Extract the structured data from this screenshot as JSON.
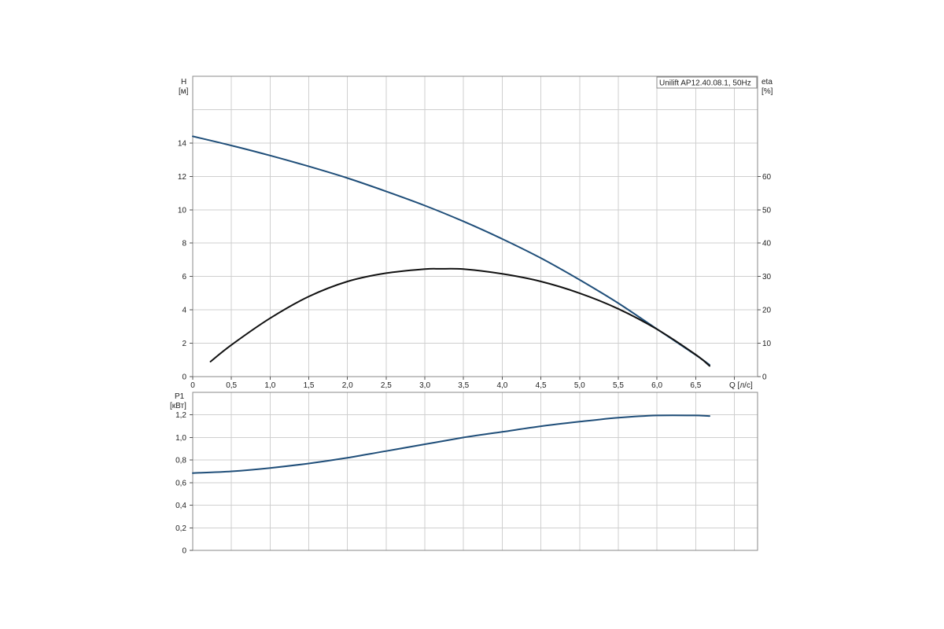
{
  "chart_data": [
    {
      "type": "line",
      "legend_text": "Unilift AP12.40.08.1, 50Hz",
      "legend_placement": "top-right",
      "grid": true,
      "xlabel": "Q [л/с]",
      "ylabel_left": {
        "name": "H",
        "unit": "[м]"
      },
      "ylabel_right": {
        "name": "eta",
        "unit": "[%]"
      },
      "xlim": [
        0,
        7.3
      ],
      "ylim_left": [
        0,
        18
      ],
      "ylim_right": [
        0,
        90
      ],
      "x_ticks": [
        "0",
        "0,5",
        "1,0",
        "1,5",
        "2,0",
        "2,5",
        "3,0",
        "3,5",
        "4,0",
        "4,5",
        "5,0",
        "5,5",
        "6,0",
        "6,5"
      ],
      "x_tick_values": [
        0,
        0.5,
        1.0,
        1.5,
        2.0,
        2.5,
        3.0,
        3.5,
        4.0,
        4.5,
        5.0,
        5.5,
        6.0,
        6.5
      ],
      "y_left_ticks": [
        "0",
        "2",
        "4",
        "6",
        "8",
        "10",
        "12",
        "14"
      ],
      "y_left_tick_values": [
        0,
        2,
        4,
        6,
        8,
        10,
        12,
        14
      ],
      "y_right_ticks": [
        "0",
        "10",
        "20",
        "30",
        "40",
        "50",
        "60"
      ],
      "y_right_tick_values": [
        0,
        10,
        20,
        30,
        40,
        50,
        60
      ],
      "series": [
        {
          "axis": "left",
          "color": "#1f4e79",
          "x": [
            0,
            0.5,
            1.0,
            1.5,
            2.0,
            2.5,
            3.0,
            3.5,
            4.0,
            4.5,
            5.0,
            5.5,
            6.0,
            6.5,
            6.68
          ],
          "y": [
            14.4,
            13.85,
            13.25,
            12.6,
            11.9,
            11.1,
            10.25,
            9.3,
            8.25,
            7.1,
            5.8,
            4.4,
            2.85,
            1.3,
            0.7
          ]
        },
        {
          "axis": "right",
          "color": "#111111",
          "x": [
            0.23,
            0.5,
            1.0,
            1.5,
            2.0,
            2.5,
            3.0,
            3.2,
            3.5,
            4.0,
            4.5,
            5.0,
            5.5,
            6.0,
            6.5,
            6.68
          ],
          "y": [
            4.5,
            9.5,
            17.5,
            24,
            28.5,
            31,
            32.2,
            32.3,
            32.2,
            30.8,
            28.5,
            25,
            20.3,
            14.2,
            6.6,
            3.2
          ]
        }
      ]
    },
    {
      "type": "line",
      "grid": true,
      "ylabel": {
        "name": "P1",
        "unit": "[кВт]"
      },
      "xlim": [
        0,
        7.3
      ],
      "ylim": [
        0,
        1.4
      ],
      "x_tick_values": [
        0,
        0.5,
        1.0,
        1.5,
        2.0,
        2.5,
        3.0,
        3.5,
        4.0,
        4.5,
        5.0,
        5.5,
        6.0,
        6.5
      ],
      "y_ticks": [
        "0",
        "0,2",
        "0,4",
        "0,6",
        "0,8",
        "1,0",
        "1,2"
      ],
      "y_tick_values": [
        0,
        0.2,
        0.4,
        0.6,
        0.8,
        1.0,
        1.2
      ],
      "series": [
        {
          "axis": "left",
          "color": "#1f4e79",
          "x": [
            0,
            0.5,
            1.0,
            1.5,
            2.0,
            2.5,
            3.0,
            3.5,
            4.0,
            4.5,
            5.0,
            5.5,
            6.0,
            6.5,
            6.68
          ],
          "y": [
            0.685,
            0.7,
            0.73,
            0.77,
            0.82,
            0.88,
            0.94,
            1.0,
            1.05,
            1.1,
            1.14,
            1.175,
            1.195,
            1.195,
            1.19
          ]
        }
      ]
    }
  ]
}
